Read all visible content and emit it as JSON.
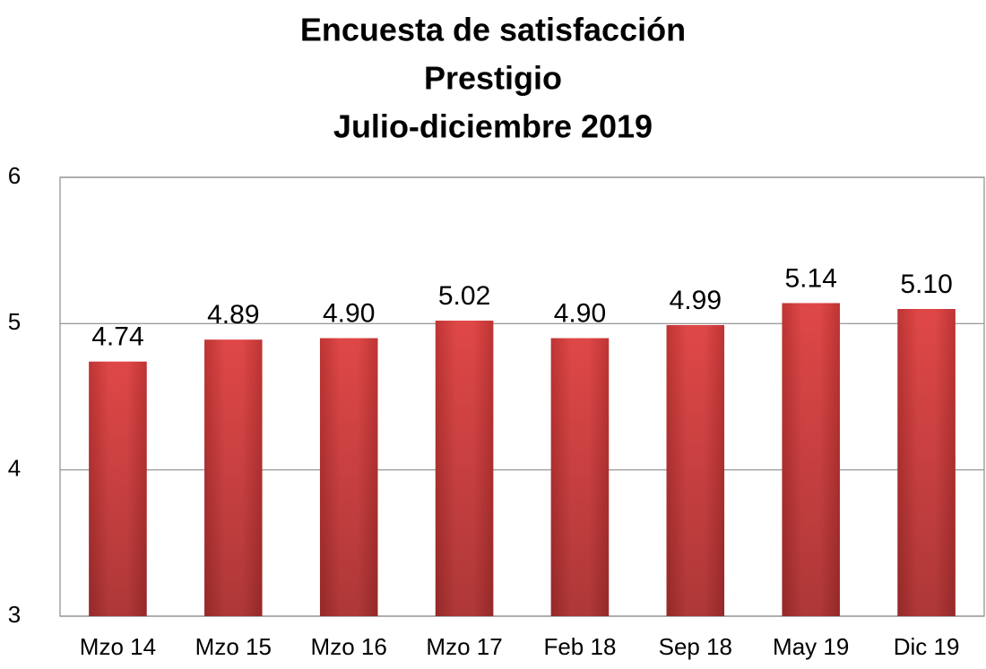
{
  "chart_data": {
    "type": "bar",
    "title": [
      "Encuesta de satisfacción",
      "Prestigio",
      "Julio-diciembre 2019"
    ],
    "categories": [
      "Mzo 14",
      "Mzo 15",
      "Mzo 16",
      "Mzo 17",
      "Feb 18",
      "Sep 18",
      "May 19",
      "Dic 19"
    ],
    "values": [
      4.74,
      4.89,
      4.9,
      5.02,
      4.9,
      4.99,
      5.14,
      5.1
    ],
    "value_labels": [
      "4.74",
      "4.89",
      "4.90",
      "5.02",
      "4.90",
      "4.99",
      "5.14",
      "5.10"
    ],
    "color": "#d43c3c",
    "ylim": [
      3,
      6
    ],
    "yticks": [
      3,
      4,
      5,
      6
    ],
    "grid": true
  }
}
